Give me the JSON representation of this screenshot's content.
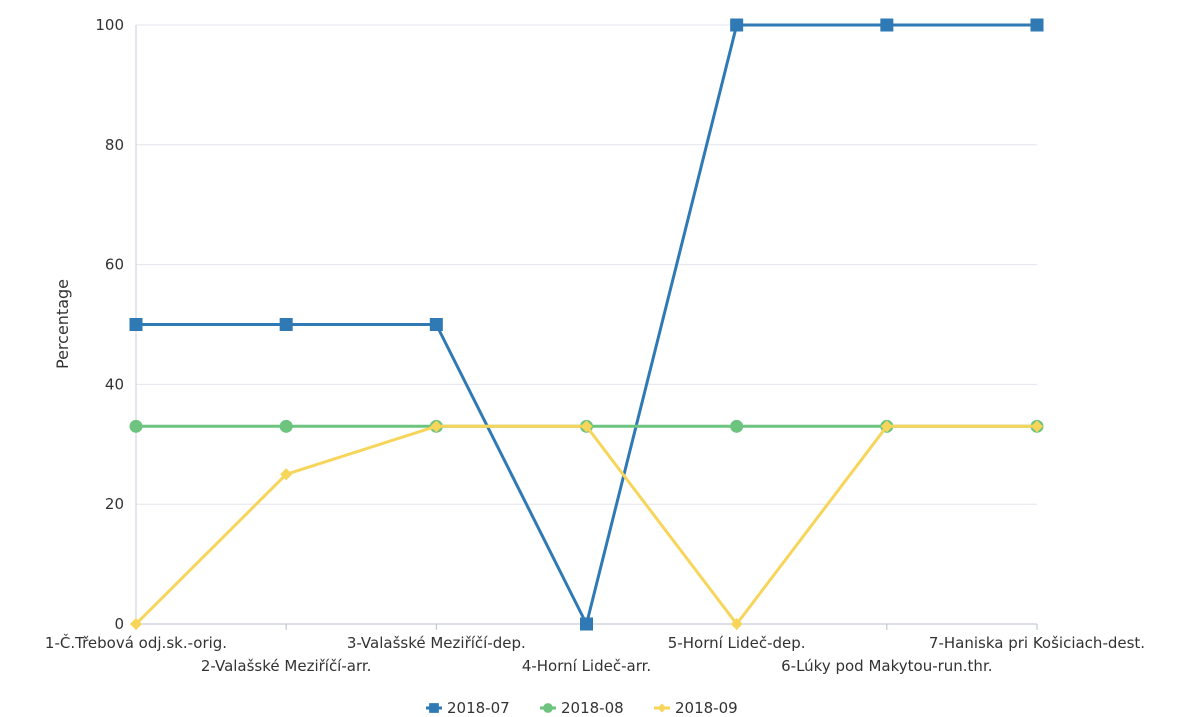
{
  "chart_data": {
    "type": "line",
    "title": "",
    "xlabel": "",
    "ylabel": "Percentage",
    "ylim": [
      0,
      100
    ],
    "yticks": [
      0,
      20,
      40,
      60,
      80,
      100
    ],
    "grid": true,
    "legend_position": "bottom",
    "categories": [
      "1-Č.Třebová odj.sk.-orig.",
      "2-Valašské Meziříčí-arr.",
      "3-Valašské Meziříčí-dep.",
      "4-Horní Lideč-arr.",
      "5-Horní Lideč-dep.",
      "6-Lúky pod Makytou-run.thr.",
      "7-Haniska pri Košiciach-dest."
    ],
    "series": [
      {
        "name": "2018-07",
        "color": "#2f7ab5",
        "marker": "square",
        "values": [
          50,
          50,
          50,
          0,
          100,
          100,
          100
        ]
      },
      {
        "name": "2018-08",
        "color": "#6cc47f",
        "marker": "circle",
        "values": [
          33,
          33,
          33,
          33,
          33,
          33,
          33
        ]
      },
      {
        "name": "2018-09",
        "color": "#f7d55a",
        "marker": "diamond",
        "values": [
          0,
          25,
          33,
          33,
          0,
          33,
          33
        ]
      }
    ]
  }
}
